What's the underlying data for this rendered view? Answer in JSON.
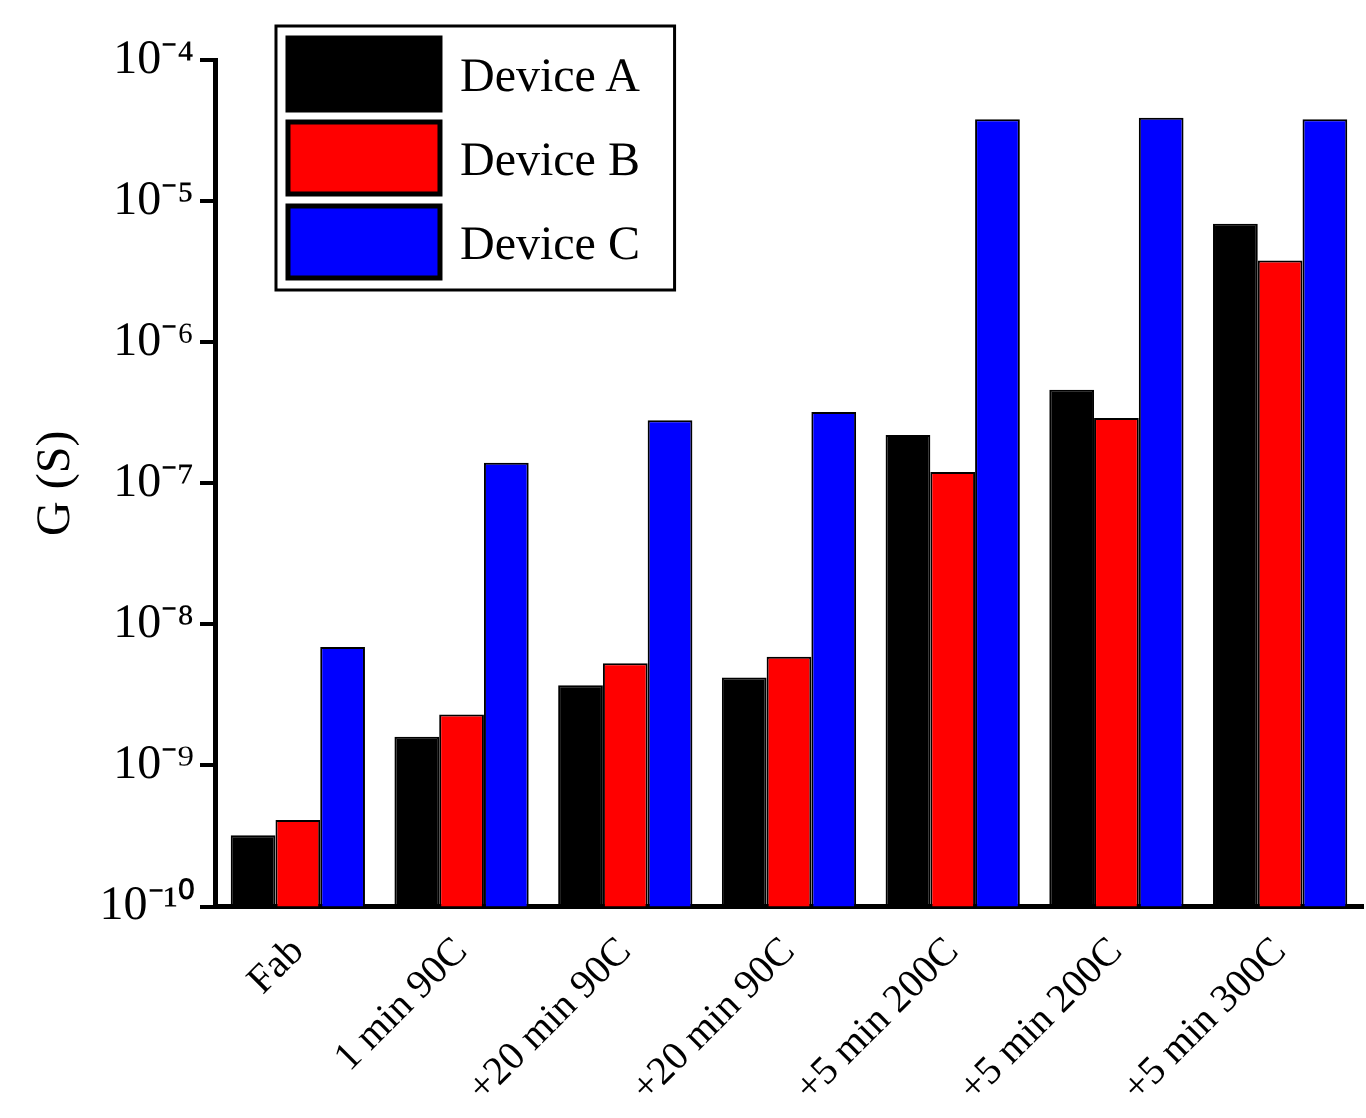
{
  "chart_data": {
    "type": "bar",
    "ylabel": "G (S)",
    "log": true,
    "categories": [
      "Fab",
      "1 min 90C",
      "+20 min 90C",
      "+20 min 90C",
      "+5 min 200C",
      "+5 min 200C",
      "+5 min 300C"
    ],
    "series": [
      {
        "name": "Device A",
        "color": "#000000",
        "values": [
          3.2e-10,
          1.6e-09,
          3.7e-09,
          4.2e-09,
          2.2e-07,
          4.6e-07,
          6.9e-06
        ]
      },
      {
        "name": "Device B",
        "color": "#ff0000",
        "values": [
          4.1e-10,
          2.3e-09,
          5.3e-09,
          5.9e-09,
          1.2e-07,
          2.9e-07,
          3.8e-06
        ]
      },
      {
        "name": "Device C",
        "color": "#0000ff",
        "values": [
          6.9e-09,
          1.4e-07,
          2.8e-07,
          3.2e-07,
          3.8e-05,
          3.9e-05,
          3.8e-05
        ]
      }
    ],
    "ylim": [
      1e-10,
      0.0001
    ],
    "yticks": [
      {
        "value": 1e-10,
        "label": "10⁻¹⁰"
      },
      {
        "value": 1e-09,
        "label": "10⁻⁹"
      },
      {
        "value": 1e-08,
        "label": "10⁻⁸"
      },
      {
        "value": 1e-07,
        "label": "10⁻⁷"
      },
      {
        "value": 1e-06,
        "label": "10⁻⁶"
      },
      {
        "value": 1e-05,
        "label": "10⁻⁵"
      },
      {
        "value": 0.0001,
        "label": "10⁻⁴"
      }
    ],
    "grid": false,
    "legend": "top left"
  }
}
